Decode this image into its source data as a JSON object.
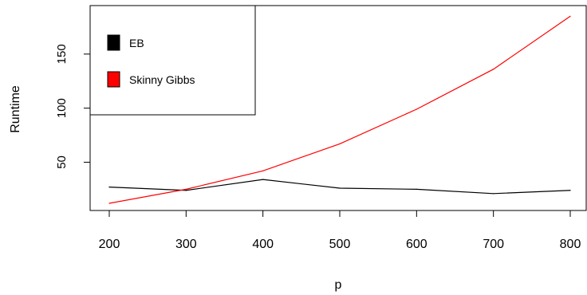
{
  "chart_data": {
    "type": "line",
    "xlabel": "p",
    "ylabel": "Runtime",
    "x": [
      200,
      300,
      400,
      500,
      600,
      700,
      800
    ],
    "xlim": [
      200,
      800
    ],
    "ylim": [
      12,
      186
    ],
    "xticks": [
      200,
      300,
      400,
      500,
      600,
      700,
      800
    ],
    "yticks": [
      50,
      100,
      150
    ],
    "grid": false,
    "legend_position": "top-left",
    "series": [
      {
        "name": "EB",
        "color": "#000000",
        "values": [
          27,
          24,
          34,
          26,
          25,
          21,
          24
        ]
      },
      {
        "name": "Skinny Gibbs",
        "color": "#ff0000",
        "values": [
          12,
          25,
          42,
          67,
          99,
          136,
          185
        ]
      }
    ]
  }
}
